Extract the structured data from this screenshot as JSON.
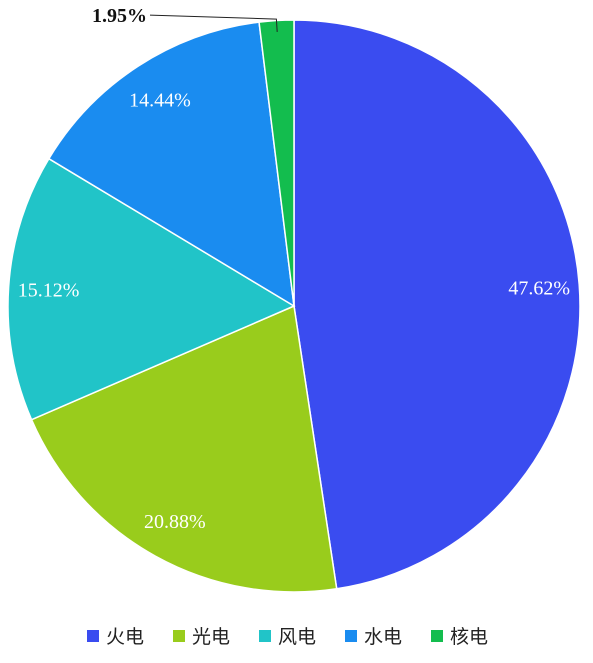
{
  "chart_data": {
    "type": "pie",
    "title": "",
    "slices": [
      {
        "name": "火电",
        "value": 47.62,
        "label": "47.62%",
        "color": "#3a4cf0"
      },
      {
        "name": "光电",
        "value": 20.88,
        "label": "20.88%",
        "color": "#99cc1c"
      },
      {
        "name": "风电",
        "value": 15.12,
        "label": "15.12%",
        "color": "#21c4c8"
      },
      {
        "name": "水电",
        "value": 14.44,
        "label": "14.44%",
        "color": "#1a8cf0"
      },
      {
        "name": "核电",
        "value": 1.95,
        "label": "1.95%",
        "color": "#13bd4e"
      }
    ],
    "start_angle": "12 o'clock",
    "direction": "clockwise",
    "legend_position": "bottom-center",
    "label_color": "#ffffff",
    "outside_label_color": "#111111"
  }
}
